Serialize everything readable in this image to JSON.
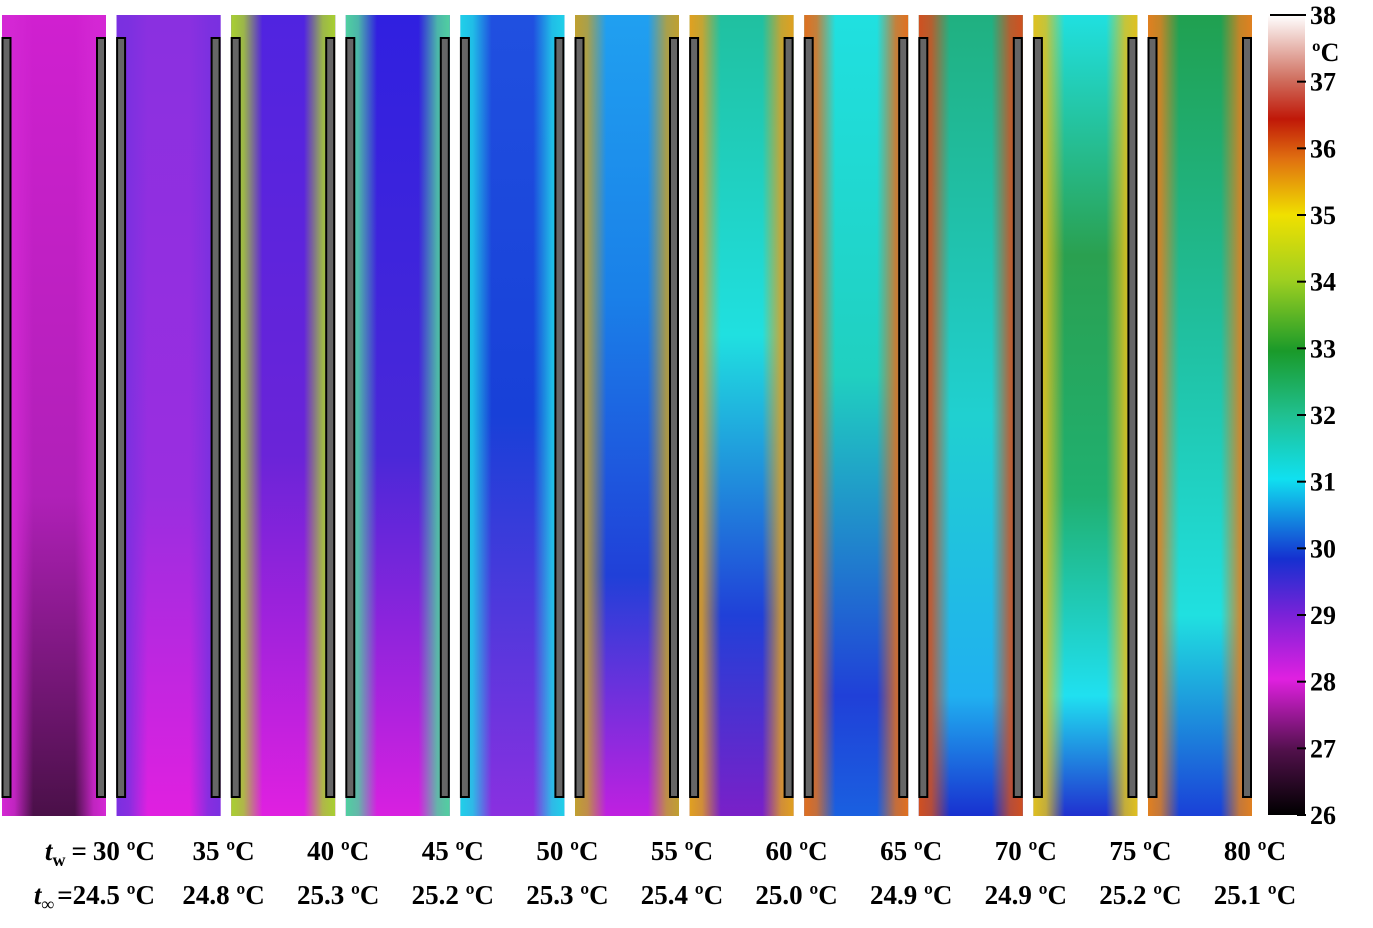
{
  "figure": {
    "colorbar": {
      "lim": [
        26,
        38
      ],
      "ticks": [
        26,
        27,
        28,
        29,
        30,
        31,
        32,
        33,
        34,
        35,
        36,
        37,
        38
      ],
      "unit": "ºC"
    },
    "row_labels": {
      "tw_symbol": "t",
      "tw_subscript": "w",
      "tinf_symbol": "t",
      "tinf_subscript": "∞",
      "equals": "="
    },
    "panels": [
      {
        "tw": "30 ºC",
        "tinf": "24.5 ºC"
      },
      {
        "tw": "35 ºC",
        "tinf": "24.8 ºC"
      },
      {
        "tw": "40 ºC",
        "tinf": "25.3 ºC"
      },
      {
        "tw": "45 ºC",
        "tinf": "25.2 ºC"
      },
      {
        "tw": "50 ºC",
        "tinf": "25.3 ºC"
      },
      {
        "tw": "55 ºC",
        "tinf": "25.4 ºC"
      },
      {
        "tw": "60 ºC",
        "tinf": "25.0 ºC"
      },
      {
        "tw": "65 ºC",
        "tinf": "24.9 ºC"
      },
      {
        "tw": "70 ºC",
        "tinf": "24.9 ºC"
      },
      {
        "tw": "75 ºC",
        "tinf": "25.2 ºC"
      },
      {
        "tw": "80 ºC",
        "tinf": "25.1 ºC"
      }
    ]
  }
}
